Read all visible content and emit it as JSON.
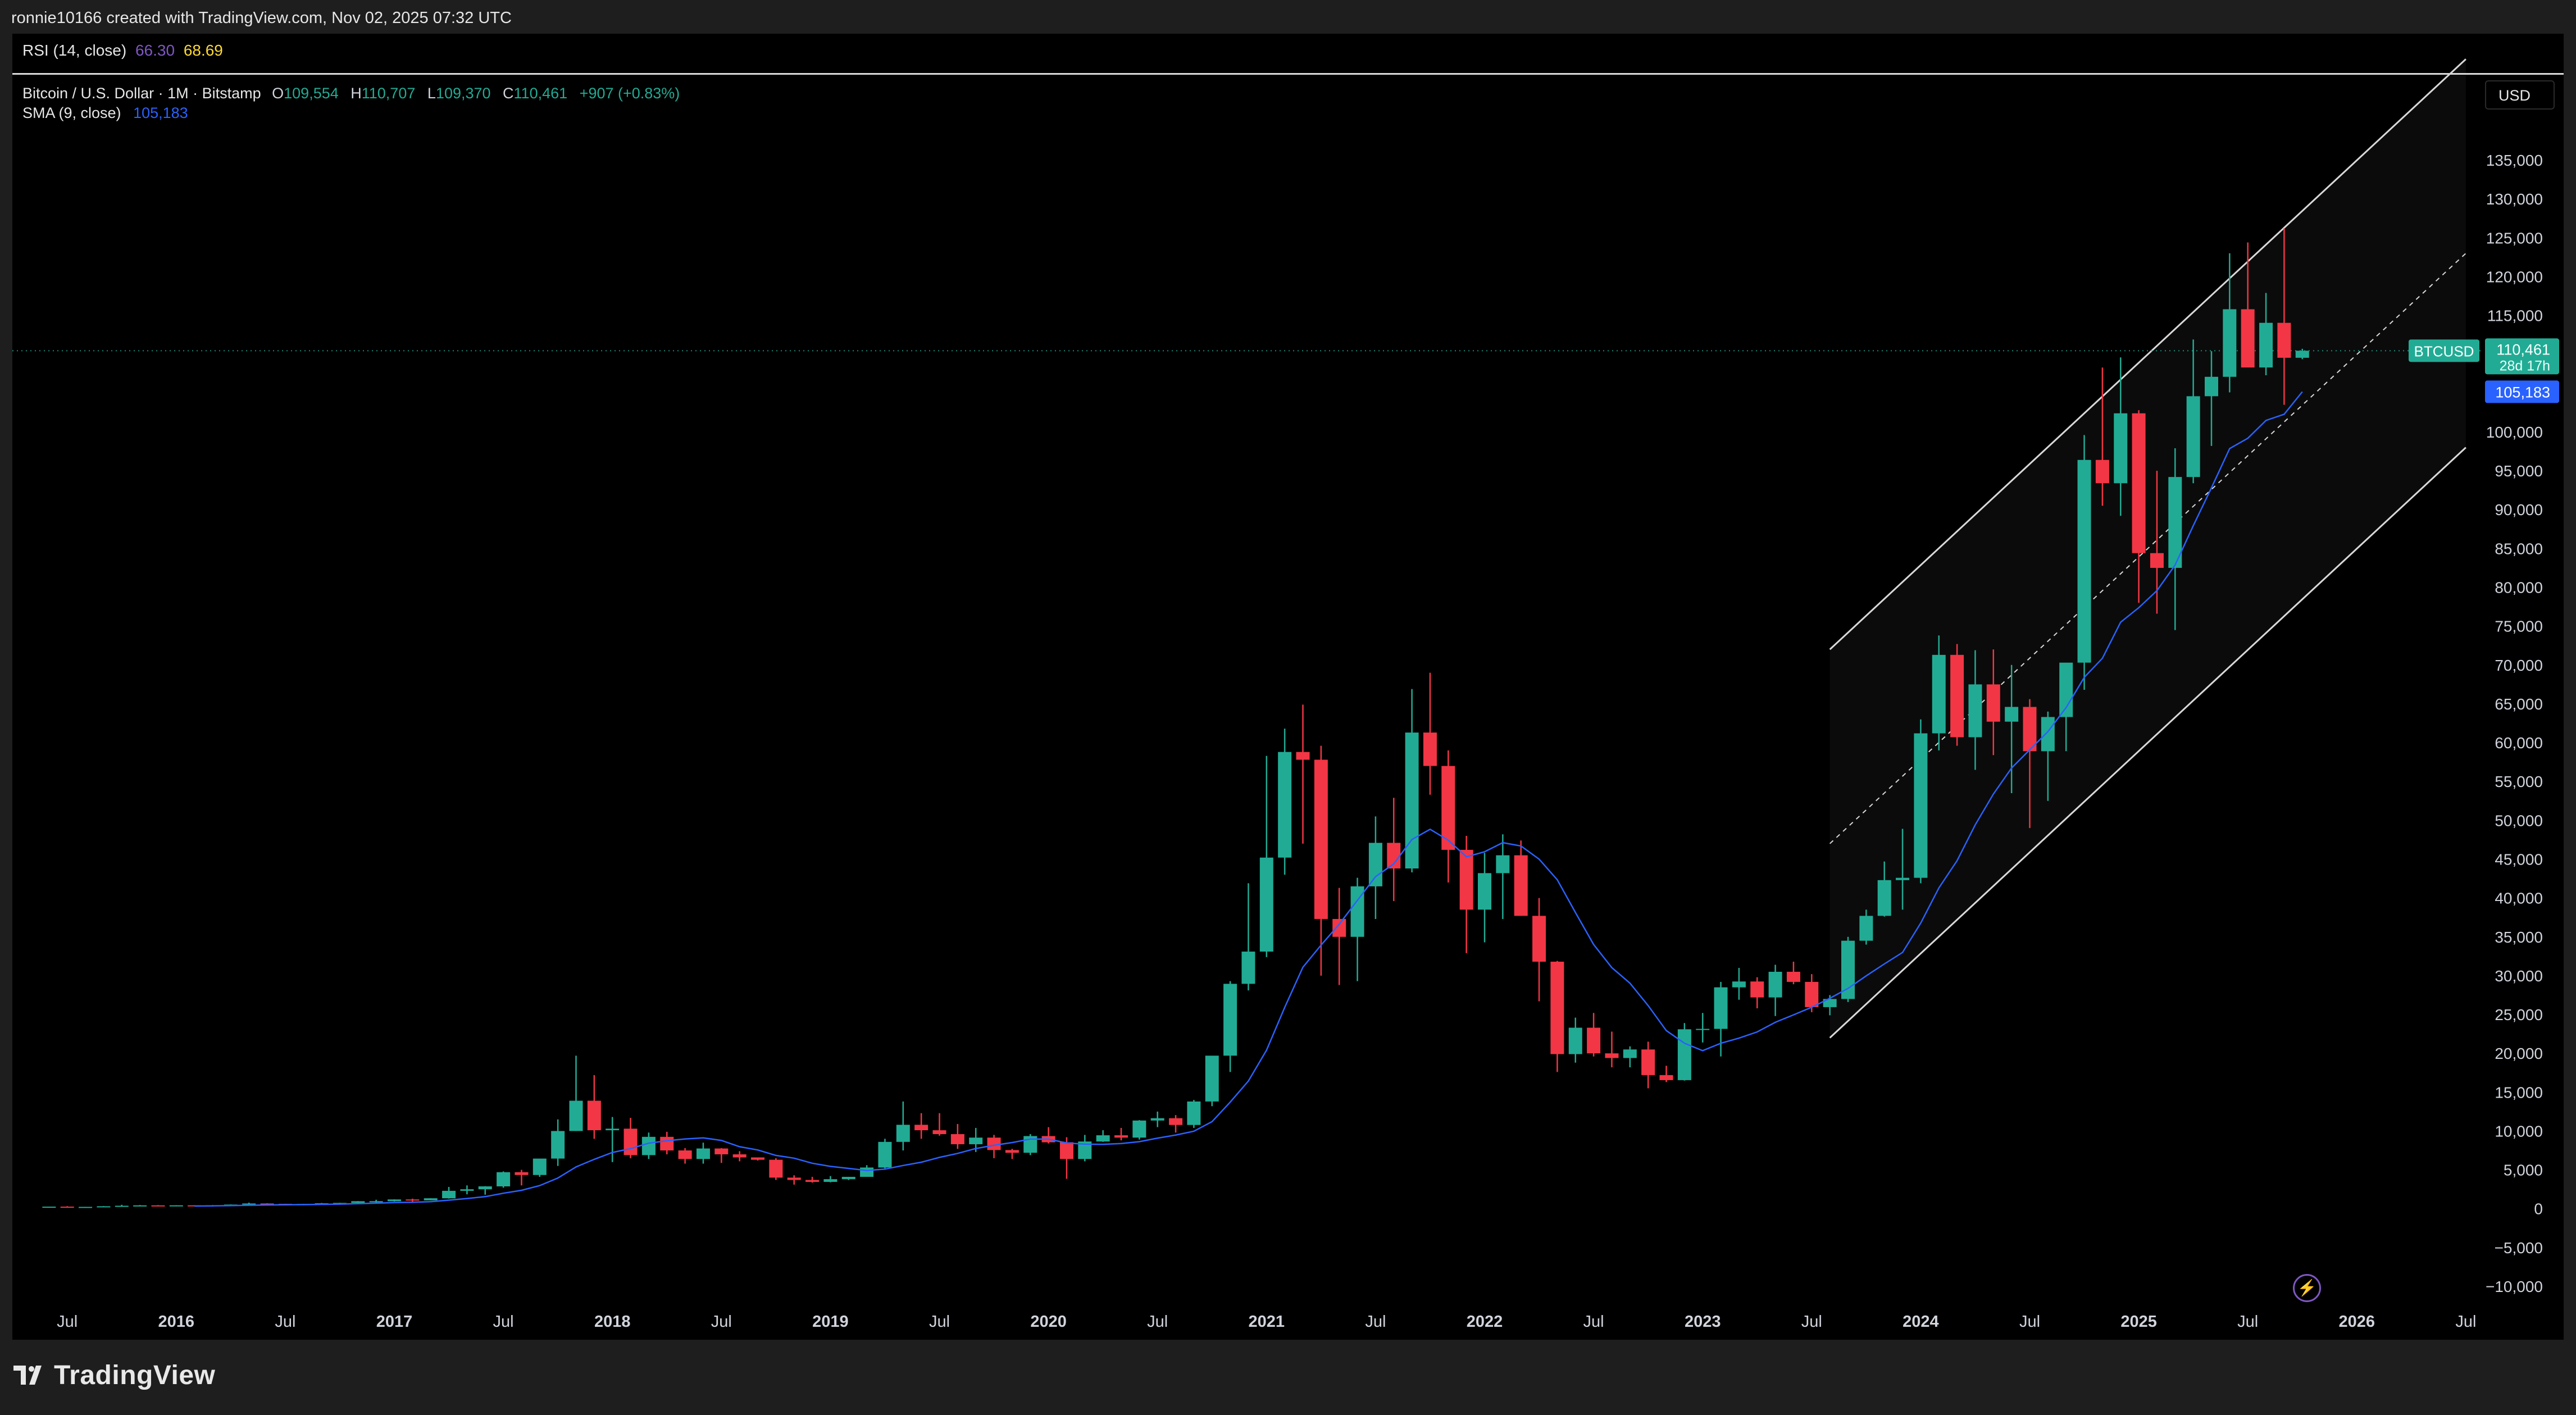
{
  "header": {
    "attribution": "ronnie10166 created with TradingView.com, Nov 02, 2025 07:32 UTC"
  },
  "rsi_legend": {
    "label": "RSI (14, close)",
    "rsi_value": "66.30",
    "rsi_ma_value": "68.69"
  },
  "symbol_legend": {
    "title": "Bitcoin / U.S. Dollar · 1M · Bitstamp",
    "o_key": "O",
    "o_value": "109,554",
    "h_key": "H",
    "h_value": "110,707",
    "l_key": "L",
    "l_value": "109,370",
    "c_key": "C",
    "c_value": "110,461",
    "change": "+907 (+0.83%)"
  },
  "sma_legend": {
    "label": "SMA (9, close)",
    "value": "105,183"
  },
  "price_axis": {
    "currency": "USD",
    "ticks": [
      "135,000",
      "130,000",
      "125,000",
      "120,000",
      "115,000",
      "110,000",
      "105,000",
      "100,000",
      "95,000",
      "90,000",
      "85,000",
      "80,000",
      "75,000",
      "70,000",
      "65,000",
      "60,000",
      "55,000",
      "50,000",
      "45,000",
      "40,000",
      "35,000",
      "30,000",
      "25,000",
      "20,000",
      "15,000",
      "10,000",
      "5,000",
      "0",
      "−5,000",
      "−10,000"
    ]
  },
  "price_tags": {
    "symbol": "BTCUSD",
    "last_price": "110,461",
    "countdown": "28d 17h",
    "sma_value": "105,183"
  },
  "time_axis": {
    "ticks": [
      {
        "label": "Jul",
        "bold": false
      },
      {
        "label": "2016",
        "bold": true
      },
      {
        "label": "Jul",
        "bold": false
      },
      {
        "label": "2017",
        "bold": true
      },
      {
        "label": "Jul",
        "bold": false
      },
      {
        "label": "2018",
        "bold": true
      },
      {
        "label": "Jul",
        "bold": false
      },
      {
        "label": "2019",
        "bold": true
      },
      {
        "label": "Jul",
        "bold": false
      },
      {
        "label": "2020",
        "bold": true
      },
      {
        "label": "Jul",
        "bold": false
      },
      {
        "label": "2021",
        "bold": true
      },
      {
        "label": "Jul",
        "bold": false
      },
      {
        "label": "2022",
        "bold": true
      },
      {
        "label": "Jul",
        "bold": false
      },
      {
        "label": "2023",
        "bold": true
      },
      {
        "label": "Jul",
        "bold": false
      },
      {
        "label": "2024",
        "bold": true
      },
      {
        "label": "Jul",
        "bold": false
      },
      {
        "label": "2025",
        "bold": true
      },
      {
        "label": "Jul",
        "bold": false
      },
      {
        "label": "2026",
        "bold": true
      },
      {
        "label": "Jul",
        "bold": false
      }
    ]
  },
  "footer": {
    "brand": "TradingView"
  },
  "colors": {
    "up": "#22ab94",
    "down": "#f23645",
    "sma": "#2962ff",
    "rsi": "#7e57c2",
    "rsi_ma": "#fdd835",
    "channel": "#d9d9d9",
    "background": "#000000"
  },
  "chart_data": {
    "type": "candlestick",
    "symbol": "Bitcoin / U.S. Dollar",
    "interval": "1M",
    "exchange": "Bitstamp",
    "ylim": [
      -10000,
      135000
    ],
    "x_range": [
      "2015-05",
      "2026-08"
    ],
    "channel": {
      "start": "2023-08",
      "end": "2026-07",
      "upper": [
        72000,
        148000
      ],
      "middle": [
        47000,
        123000
      ],
      "lower": [
        22000,
        98000
      ]
    },
    "sma_period": 9,
    "series": [
      {
        "name": "BTCUSD",
        "start": "2015-06",
        "ohlc": [
          [
            230,
            260,
            220,
            263
          ],
          [
            263,
            320,
            250,
            230
          ],
          [
            230,
            240,
            200,
            236
          ],
          [
            236,
            330,
            235,
            311
          ],
          [
            311,
            500,
            310,
            378
          ],
          [
            378,
            470,
            350,
            430
          ],
          [
            430,
            460,
            350,
            368
          ],
          [
            368,
            440,
            360,
            437
          ],
          [
            437,
            450,
            380,
            416
          ],
          [
            416,
            470,
            400,
            448
          ],
          [
            448,
            550,
            440,
            531
          ],
          [
            531,
            780,
            520,
            673
          ],
          [
            673,
            700,
            470,
            624
          ],
          [
            624,
            630,
            530,
            573
          ],
          [
            573,
            620,
            590,
            609
          ],
          [
            609,
            740,
            600,
            700
          ],
          [
            700,
            760,
            690,
            745
          ],
          [
            745,
            980,
            740,
            963
          ],
          [
            963,
            1150,
            750,
            967
          ],
          [
            967,
            1200,
            920,
            1190
          ],
          [
            1190,
            1290,
            890,
            1080
          ],
          [
            1080,
            1350,
            1070,
            1340
          ],
          [
            1340,
            2800,
            1300,
            2300
          ],
          [
            2300,
            3000,
            1850,
            2500
          ],
          [
            2500,
            2900,
            1800,
            2875
          ],
          [
            2875,
            4800,
            2700,
            4700
          ],
          [
            4700,
            5000,
            3000,
            4340
          ],
          [
            4340,
            6400,
            4100,
            6450
          ],
          [
            6450,
            11500,
            5500,
            10000
          ],
          [
            10000,
            19700,
            10000,
            13900
          ],
          [
            13900,
            17200,
            9000,
            10100
          ],
          [
            10100,
            11800,
            6000,
            10300
          ],
          [
            10300,
            11700,
            6500,
            6900
          ],
          [
            6900,
            9800,
            6400,
            9250
          ],
          [
            9250,
            9900,
            7000,
            7500
          ],
          [
            7500,
            7800,
            5800,
            6400
          ],
          [
            6400,
            8500,
            5800,
            7750
          ],
          [
            7750,
            7800,
            5900,
            7000
          ],
          [
            7000,
            7400,
            6100,
            6600
          ],
          [
            6600,
            6600,
            6200,
            6300
          ],
          [
            6300,
            6500,
            3700,
            4000
          ],
          [
            4000,
            4300,
            3100,
            3700
          ],
          [
            3700,
            4100,
            3350,
            3450
          ],
          [
            3450,
            4200,
            3400,
            3800
          ],
          [
            3800,
            4100,
            3700,
            4100
          ],
          [
            4100,
            5600,
            4100,
            5300
          ],
          [
            5300,
            9000,
            5200,
            8600
          ],
          [
            8600,
            13800,
            7500,
            10800
          ],
          [
            10800,
            12300,
            9000,
            10100
          ],
          [
            10100,
            12300,
            9400,
            9600
          ],
          [
            9600,
            10900,
            7700,
            8300
          ],
          [
            8300,
            10400,
            7300,
            9150
          ],
          [
            9150,
            9500,
            6500,
            7550
          ],
          [
            7550,
            7700,
            6400,
            7200
          ],
          [
            7200,
            9600,
            6900,
            9350
          ],
          [
            9350,
            10500,
            8400,
            8550
          ],
          [
            8550,
            9200,
            3850,
            6400
          ],
          [
            6400,
            9500,
            6100,
            8650
          ],
          [
            8650,
            10100,
            8600,
            9450
          ],
          [
            9450,
            10400,
            8800,
            9150
          ],
          [
            9150,
            11400,
            8900,
            11350
          ],
          [
            11350,
            12500,
            10500,
            11650
          ],
          [
            11650,
            12050,
            9800,
            10780
          ],
          [
            10780,
            14000,
            10400,
            13800
          ],
          [
            13800,
            19500,
            13200,
            19700
          ],
          [
            19700,
            29300,
            17600,
            28950
          ],
          [
            28950,
            41900,
            28100,
            33100
          ],
          [
            33100,
            58300,
            32400,
            45200
          ],
          [
            45200,
            61800,
            43000,
            58800
          ],
          [
            58800,
            64900,
            47000,
            57800
          ],
          [
            57800,
            59600,
            30000,
            37300
          ],
          [
            37300,
            41300,
            28800,
            35000
          ],
          [
            35000,
            42600,
            29300,
            41500
          ],
          [
            41500,
            50500,
            37300,
            47100
          ],
          [
            47100,
            52900,
            39600,
            43800
          ],
          [
            43800,
            66900,
            43300,
            61300
          ],
          [
            61300,
            69000,
            53300,
            57000
          ],
          [
            57000,
            59000,
            42000,
            46200
          ],
          [
            46200,
            48000,
            32900,
            38500
          ],
          [
            38500,
            45800,
            34300,
            43200
          ],
          [
            43200,
            48200,
            37300,
            45500
          ],
          [
            45500,
            47400,
            37700,
            37700
          ],
          [
            37700,
            40000,
            26700,
            31800
          ],
          [
            31800,
            31900,
            17600,
            19900
          ],
          [
            19900,
            24600,
            18800,
            23300
          ],
          [
            23300,
            25200,
            19600,
            20000
          ],
          [
            20000,
            22800,
            18200,
            19400
          ],
          [
            19400,
            20900,
            18200,
            20500
          ],
          [
            20500,
            21500,
            15500,
            17200
          ],
          [
            17200,
            18400,
            16300,
            16550
          ],
          [
            16550,
            23900,
            16500,
            23100
          ],
          [
            23100,
            25200,
            21400,
            23150
          ],
          [
            23150,
            29200,
            19600,
            28500
          ],
          [
            28500,
            31000,
            26900,
            29250
          ],
          [
            29250,
            29800,
            25800,
            27200
          ],
          [
            27200,
            31400,
            24800,
            30500
          ],
          [
            30500,
            31800,
            28900,
            29200
          ],
          [
            29200,
            30200,
            25300,
            25950
          ],
          [
            25950,
            27500,
            24900,
            27000
          ],
          [
            27000,
            35000,
            26600,
            34500
          ],
          [
            34500,
            38500,
            34000,
            37700
          ],
          [
            37700,
            44700,
            37600,
            42300
          ],
          [
            42300,
            48900,
            38500,
            42600
          ],
          [
            42600,
            63000,
            41900,
            61200
          ],
          [
            61200,
            73800,
            59000,
            71300
          ],
          [
            71300,
            72700,
            59600,
            60700
          ],
          [
            60700,
            71900,
            56500,
            67500
          ],
          [
            67500,
            72000,
            58400,
            62700
          ],
          [
            62700,
            70000,
            53500,
            64600
          ],
          [
            64600,
            65600,
            49000,
            58900
          ],
          [
            58900,
            64000,
            52500,
            63300
          ],
          [
            63300,
            69600,
            58900,
            70300
          ],
          [
            70300,
            99600,
            66800,
            96400
          ],
          [
            96400,
            108300,
            90500,
            93400
          ],
          [
            93400,
            109600,
            89200,
            102400
          ],
          [
            102400,
            102800,
            78000,
            84400
          ],
          [
            84400,
            95000,
            76600,
            82500
          ],
          [
            82500,
            97900,
            74500,
            94200
          ],
          [
            94200,
            111900,
            93400,
            104600
          ],
          [
            104600,
            110400,
            98200,
            107100
          ],
          [
            107100,
            123000,
            105100,
            115800
          ],
          [
            115800,
            124400,
            108700,
            108300
          ],
          [
            108300,
            117900,
            107300,
            114050
          ],
          [
            114050,
            126200,
            103500,
            109550
          ],
          [
            109550,
            110707,
            109370,
            110461
          ]
        ]
      }
    ]
  }
}
